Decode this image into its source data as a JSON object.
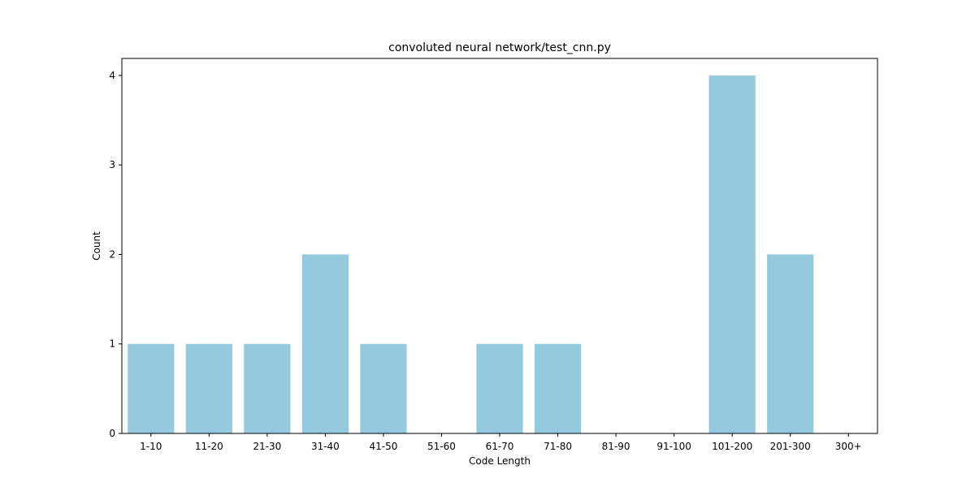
{
  "chart_data": {
    "type": "bar",
    "title": "convoluted neural network/test_cnn.py",
    "xlabel": "Code Length",
    "ylabel": "Count",
    "categories": [
      "1-10",
      "11-20",
      "21-30",
      "31-40",
      "41-50",
      "51-60",
      "61-70",
      "71-80",
      "81-90",
      "91-100",
      "101-200",
      "201-300",
      "300+"
    ],
    "values": [
      1,
      1,
      1,
      2,
      1,
      0,
      1,
      1,
      0,
      0,
      4,
      2,
      0
    ],
    "ylim": [
      0,
      4.19
    ],
    "yticks": [
      "0",
      "1",
      "2",
      "3",
      "4"
    ],
    "grid": false,
    "bar_color": "#95c9de"
  }
}
